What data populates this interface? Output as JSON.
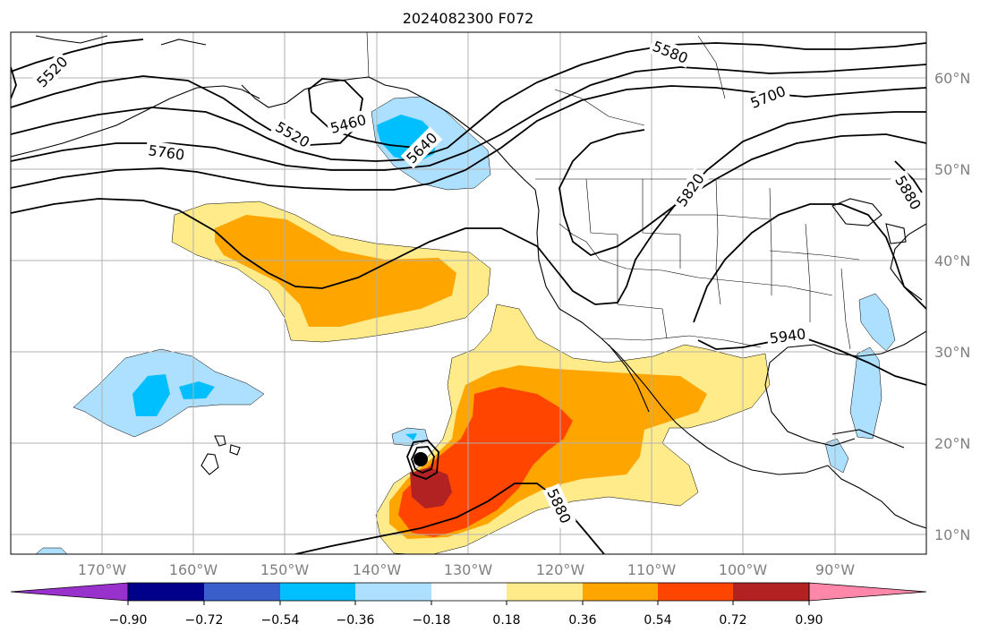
{
  "title": "2024082300 F072",
  "lat_labels": [
    "60°N",
    "50°N",
    "40°N",
    "30°N",
    "20°N",
    "10°N"
  ],
  "lon_labels": [
    "170°W",
    "160°W",
    "150°W",
    "140°W",
    "130°W",
    "120°W",
    "110°W",
    "100°W",
    "90°W"
  ],
  "contour_labels": [
    "5520",
    "5520",
    "5460",
    "5640",
    "5760",
    "5580",
    "5700",
    "5820",
    "5880",
    "5940",
    "5880"
  ],
  "colorbar": {
    "ticks": [
      "−0.90",
      "−0.72",
      "−0.54",
      "−0.36",
      "−0.18",
      "0.18",
      "0.36",
      "0.54",
      "0.72",
      "0.90"
    ],
    "colors": [
      "#9932cc",
      "#00008b",
      "#3a5fcd",
      "#00bfff",
      "#addfff",
      "#ffffff",
      "#ffeb8a",
      "#ffa500",
      "#ff4500",
      "#b22222",
      "#ff88aa"
    ]
  },
  "colors": {
    "orange": "#ffa500",
    "red_orange": "#ff4500",
    "firebrick": "#b22222",
    "light_yellow": "#ffeb8a",
    "light_blue": "#addfff",
    "deep_sky_blue": "#00bfff",
    "grid": "#b0b0b0",
    "label_gray": "#808080"
  }
}
